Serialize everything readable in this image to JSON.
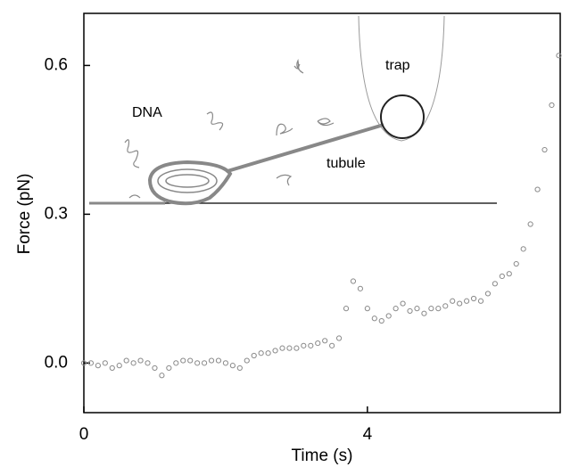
{
  "chart_data": {
    "type": "scatter",
    "x_label": "Time (s)",
    "y_label": "Force (pN)",
    "annotations": [
      "DNA",
      "trap",
      "tubule"
    ],
    "x": [
      0,
      0.1,
      0.2,
      0.3,
      0.4,
      0.5,
      0.6,
      0.7,
      0.8,
      0.9,
      1.0,
      1.1,
      1.2,
      1.3,
      1.4,
      1.5,
      1.6,
      1.7,
      1.8,
      1.9,
      2.0,
      2.1,
      2.2,
      2.3,
      2.4,
      2.5,
      2.6,
      2.7,
      2.8,
      2.9,
      3.0,
      3.1,
      3.2,
      3.3,
      3.4,
      3.5,
      3.6,
      3.7,
      3.8,
      3.9,
      4.0,
      4.1,
      4.2,
      4.3,
      4.4,
      4.5,
      4.6,
      4.7,
      4.8,
      4.9,
      5.0,
      5.1,
      5.2,
      5.3,
      5.4,
      5.5,
      5.6,
      5.7,
      5.8,
      5.9,
      6.0,
      6.1,
      6.2,
      6.3,
      6.4,
      6.5,
      6.6,
      6.7
    ],
    "values": [
      0.0,
      0.0,
      -0.005,
      0.0,
      -0.01,
      -0.005,
      0.005,
      0.0,
      0.005,
      0.0,
      -0.01,
      -0.025,
      -0.01,
      0.0,
      0.005,
      0.005,
      0.0,
      0.0,
      0.005,
      0.005,
      0.0,
      -0.005,
      -0.01,
      0.005,
      0.015,
      0.02,
      0.02,
      0.025,
      0.03,
      0.03,
      0.03,
      0.035,
      0.035,
      0.04,
      0.045,
      0.035,
      0.05,
      0.11,
      0.165,
      0.15,
      0.11,
      0.09,
      0.085,
      0.095,
      0.11,
      0.12,
      0.105,
      0.11,
      0.1,
      0.11,
      0.11,
      0.115,
      0.125,
      0.12,
      0.125,
      0.13,
      0.125,
      0.14,
      0.16,
      0.175,
      0.18,
      0.2,
      0.23,
      0.28,
      0.35,
      0.43,
      0.52,
      0.62
    ],
    "color": "#8a8a8a",
    "xlim": [
      0,
      6.72
    ],
    "xticks": [
      0,
      4
    ],
    "ylim": [
      -0.1,
      0.705
    ],
    "yticks": [
      {
        "value": 0,
        "label": "0.0"
      },
      0.3,
      0.6
    ],
    "grid": false
  }
}
